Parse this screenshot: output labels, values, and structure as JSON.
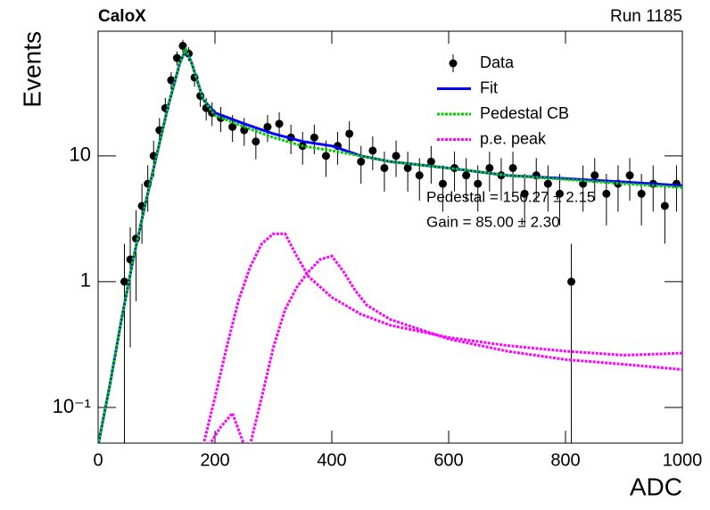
{
  "chart_data": {
    "type": "scatter",
    "title": "CaloX",
    "subtitle": "Run 1185",
    "xlabel": "ADC",
    "ylabel": "Events",
    "xlim": [
      0,
      1000
    ],
    "ylim": [
      0.052,
      98
    ],
    "ylog": true,
    "xticks": [
      0,
      200,
      400,
      600,
      800,
      1000
    ],
    "yticks": [
      {
        "value": 0.1,
        "label": "10⁻¹"
      },
      1,
      10
    ],
    "legend": "upper right",
    "annotations": [
      "Pedestal = 150.27 ± 2.15",
      "Gain = 85.00 ± 2.30"
    ],
    "series": [
      {
        "name": "Data",
        "color": "#000000",
        "style": "points",
        "x": [
          45,
          55,
          65,
          75,
          85,
          95,
          105,
          115,
          125,
          135,
          145,
          155,
          165,
          175,
          185,
          195,
          210,
          230,
          250,
          270,
          290,
          310,
          330,
          350,
          370,
          390,
          410,
          430,
          450,
          470,
          490,
          510,
          530,
          550,
          570,
          590,
          610,
          630,
          650,
          670,
          690,
          710,
          730,
          750,
          770,
          790,
          810,
          830,
          850,
          870,
          890,
          910,
          930,
          950,
          970,
          990
        ],
        "values": [
          1,
          1.5,
          2.2,
          4,
          6,
          10,
          16,
          24,
          40,
          60,
          75,
          65,
          42,
          30,
          24,
          22,
          20,
          17,
          16,
          13,
          17,
          18,
          14,
          12,
          14,
          10,
          12,
          15,
          9,
          11,
          8,
          10,
          8,
          7,
          9,
          6,
          8,
          7,
          6,
          8,
          7,
          8,
          5,
          7,
          6,
          5,
          1,
          6,
          7,
          5,
          6,
          7,
          5,
          6,
          4,
          6
        ],
        "errors": [
          1,
          1.2,
          1.5,
          2,
          2.4,
          3.2,
          4,
          4.9,
          6.3,
          7.7,
          8.7,
          8.1,
          6.5,
          5.5,
          4.9,
          4.7,
          4.5,
          4.1,
          4,
          3.6,
          4.1,
          4.2,
          3.7,
          3.5,
          3.7,
          3.2,
          3.5,
          3.9,
          3,
          3.3,
          2.8,
          3.2,
          2.8,
          2.6,
          3,
          2.4,
          2.8,
          2.6,
          2.4,
          2.8,
          2.6,
          2.8,
          2.2,
          2.6,
          2.4,
          2.2,
          1,
          2.4,
          2.6,
          2.2,
          2.4,
          2.6,
          2.2,
          2.4,
          2,
          2.4
        ]
      },
      {
        "name": "Fit",
        "color": "#0000ff",
        "style": "solid",
        "x": [
          0,
          20,
          40,
          60,
          80,
          100,
          120,
          140,
          150,
          160,
          180,
          200,
          250,
          300,
          350,
          400,
          450,
          500,
          600,
          700,
          800,
          900,
          1000
        ],
        "values": [
          0.05,
          0.15,
          0.5,
          1.5,
          4,
          10,
          25,
          55,
          70,
          55,
          28,
          22,
          18,
          15,
          13,
          12,
          10,
          9,
          8,
          7,
          6.6,
          6.2,
          5.8
        ]
      },
      {
        "name": "Pedestal CB",
        "color": "#00cc00",
        "style": "dotted",
        "x": [
          0,
          20,
          40,
          60,
          80,
          100,
          120,
          140,
          150,
          160,
          180,
          200,
          250,
          300,
          350,
          400,
          450,
          500,
          600,
          700,
          800,
          900,
          1000
        ],
        "values": [
          0.05,
          0.15,
          0.5,
          1.5,
          4,
          10,
          25,
          55,
          70,
          55,
          28,
          21,
          17,
          14,
          12,
          11,
          10,
          9,
          8,
          7,
          6.5,
          6,
          5.6
        ]
      },
      {
        "name": "p.e. peak",
        "color": "#ff00ff",
        "style": "dotted",
        "x": [
          180,
          200,
          220,
          240,
          260,
          280,
          300,
          320,
          340,
          360,
          400,
          450,
          500,
          600,
          700,
          800,
          900,
          1000
        ],
        "values": [
          0.05,
          0.12,
          0.3,
          0.7,
          1.3,
          2,
          2.4,
          2.4,
          1.6,
          1.1,
          0.75,
          0.55,
          0.45,
          0.36,
          0.31,
          0.28,
          0.26,
          0.27
        ]
      },
      {
        "color": "#ff00ff",
        "style": "dotted",
        "x": [
          260,
          280,
          300,
          320,
          340,
          360,
          380,
          400,
          420,
          440,
          460,
          500,
          600,
          700,
          800,
          900,
          1000
        ],
        "values": [
          0.05,
          0.12,
          0.3,
          0.6,
          0.9,
          1.2,
          1.5,
          1.6,
          1.2,
          0.85,
          0.65,
          0.5,
          0.35,
          0.28,
          0.24,
          0.22,
          0.2
        ]
      },
      {
        "color": "#ff00ff",
        "style": "dotted",
        "x": [
          190,
          210,
          230,
          250
        ],
        "values": [
          0.05,
          0.07,
          0.09,
          0.05
        ]
      }
    ]
  }
}
